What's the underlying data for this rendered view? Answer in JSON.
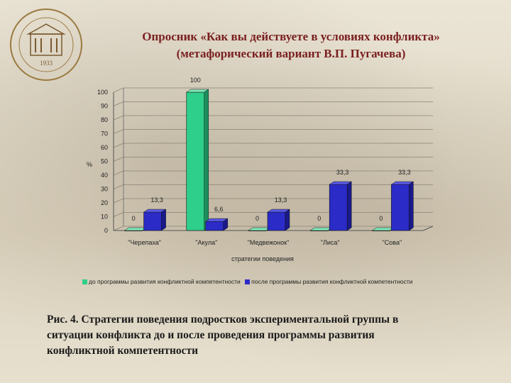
{
  "header": {
    "title_line1": "Опросник «Как вы действуете в условиях конфликта»",
    "title_line2": "(метафорический вариант В.П. Пугачева)"
  },
  "logo": {
    "icon": "university-emblem-icon",
    "year": "1933"
  },
  "caption": {
    "line1": "Рис. 4. Стратегии поведения подростков экспериментальной группы в",
    "line2": "ситуации конфликта до и после проведения программы развития",
    "line3": "конфликтной компетентности"
  },
  "colors": {
    "series_before": "#2ecf8a",
    "series_after": "#2b2bc8"
  },
  "chart_data": {
    "type": "bar",
    "xlabel": "стратегии поведения",
    "ylabel": "%",
    "ylim": [
      0,
      100
    ],
    "yticks": [
      0,
      10,
      20,
      30,
      40,
      50,
      60,
      70,
      80,
      90,
      100
    ],
    "grid": true,
    "legend_position": "bottom",
    "categories": [
      "\"Черепаха\"",
      "\"Акула\"",
      "\"Медвежонок\"",
      "\"Лиса\"",
      "\"Сова\""
    ],
    "series": [
      {
        "name": "до программы развития конфликтной компетентности",
        "values": [
          0,
          100,
          0,
          0,
          0
        ],
        "labels": [
          "0",
          "100",
          "0",
          "0",
          "0"
        ]
      },
      {
        "name": "после программы развития конфликтной компетентности",
        "values": [
          13.3,
          6.6,
          13.3,
          33.3,
          33.3
        ],
        "labels": [
          "13,3",
          "6,6",
          "13,3",
          "33,3",
          "33,3"
        ]
      }
    ]
  }
}
